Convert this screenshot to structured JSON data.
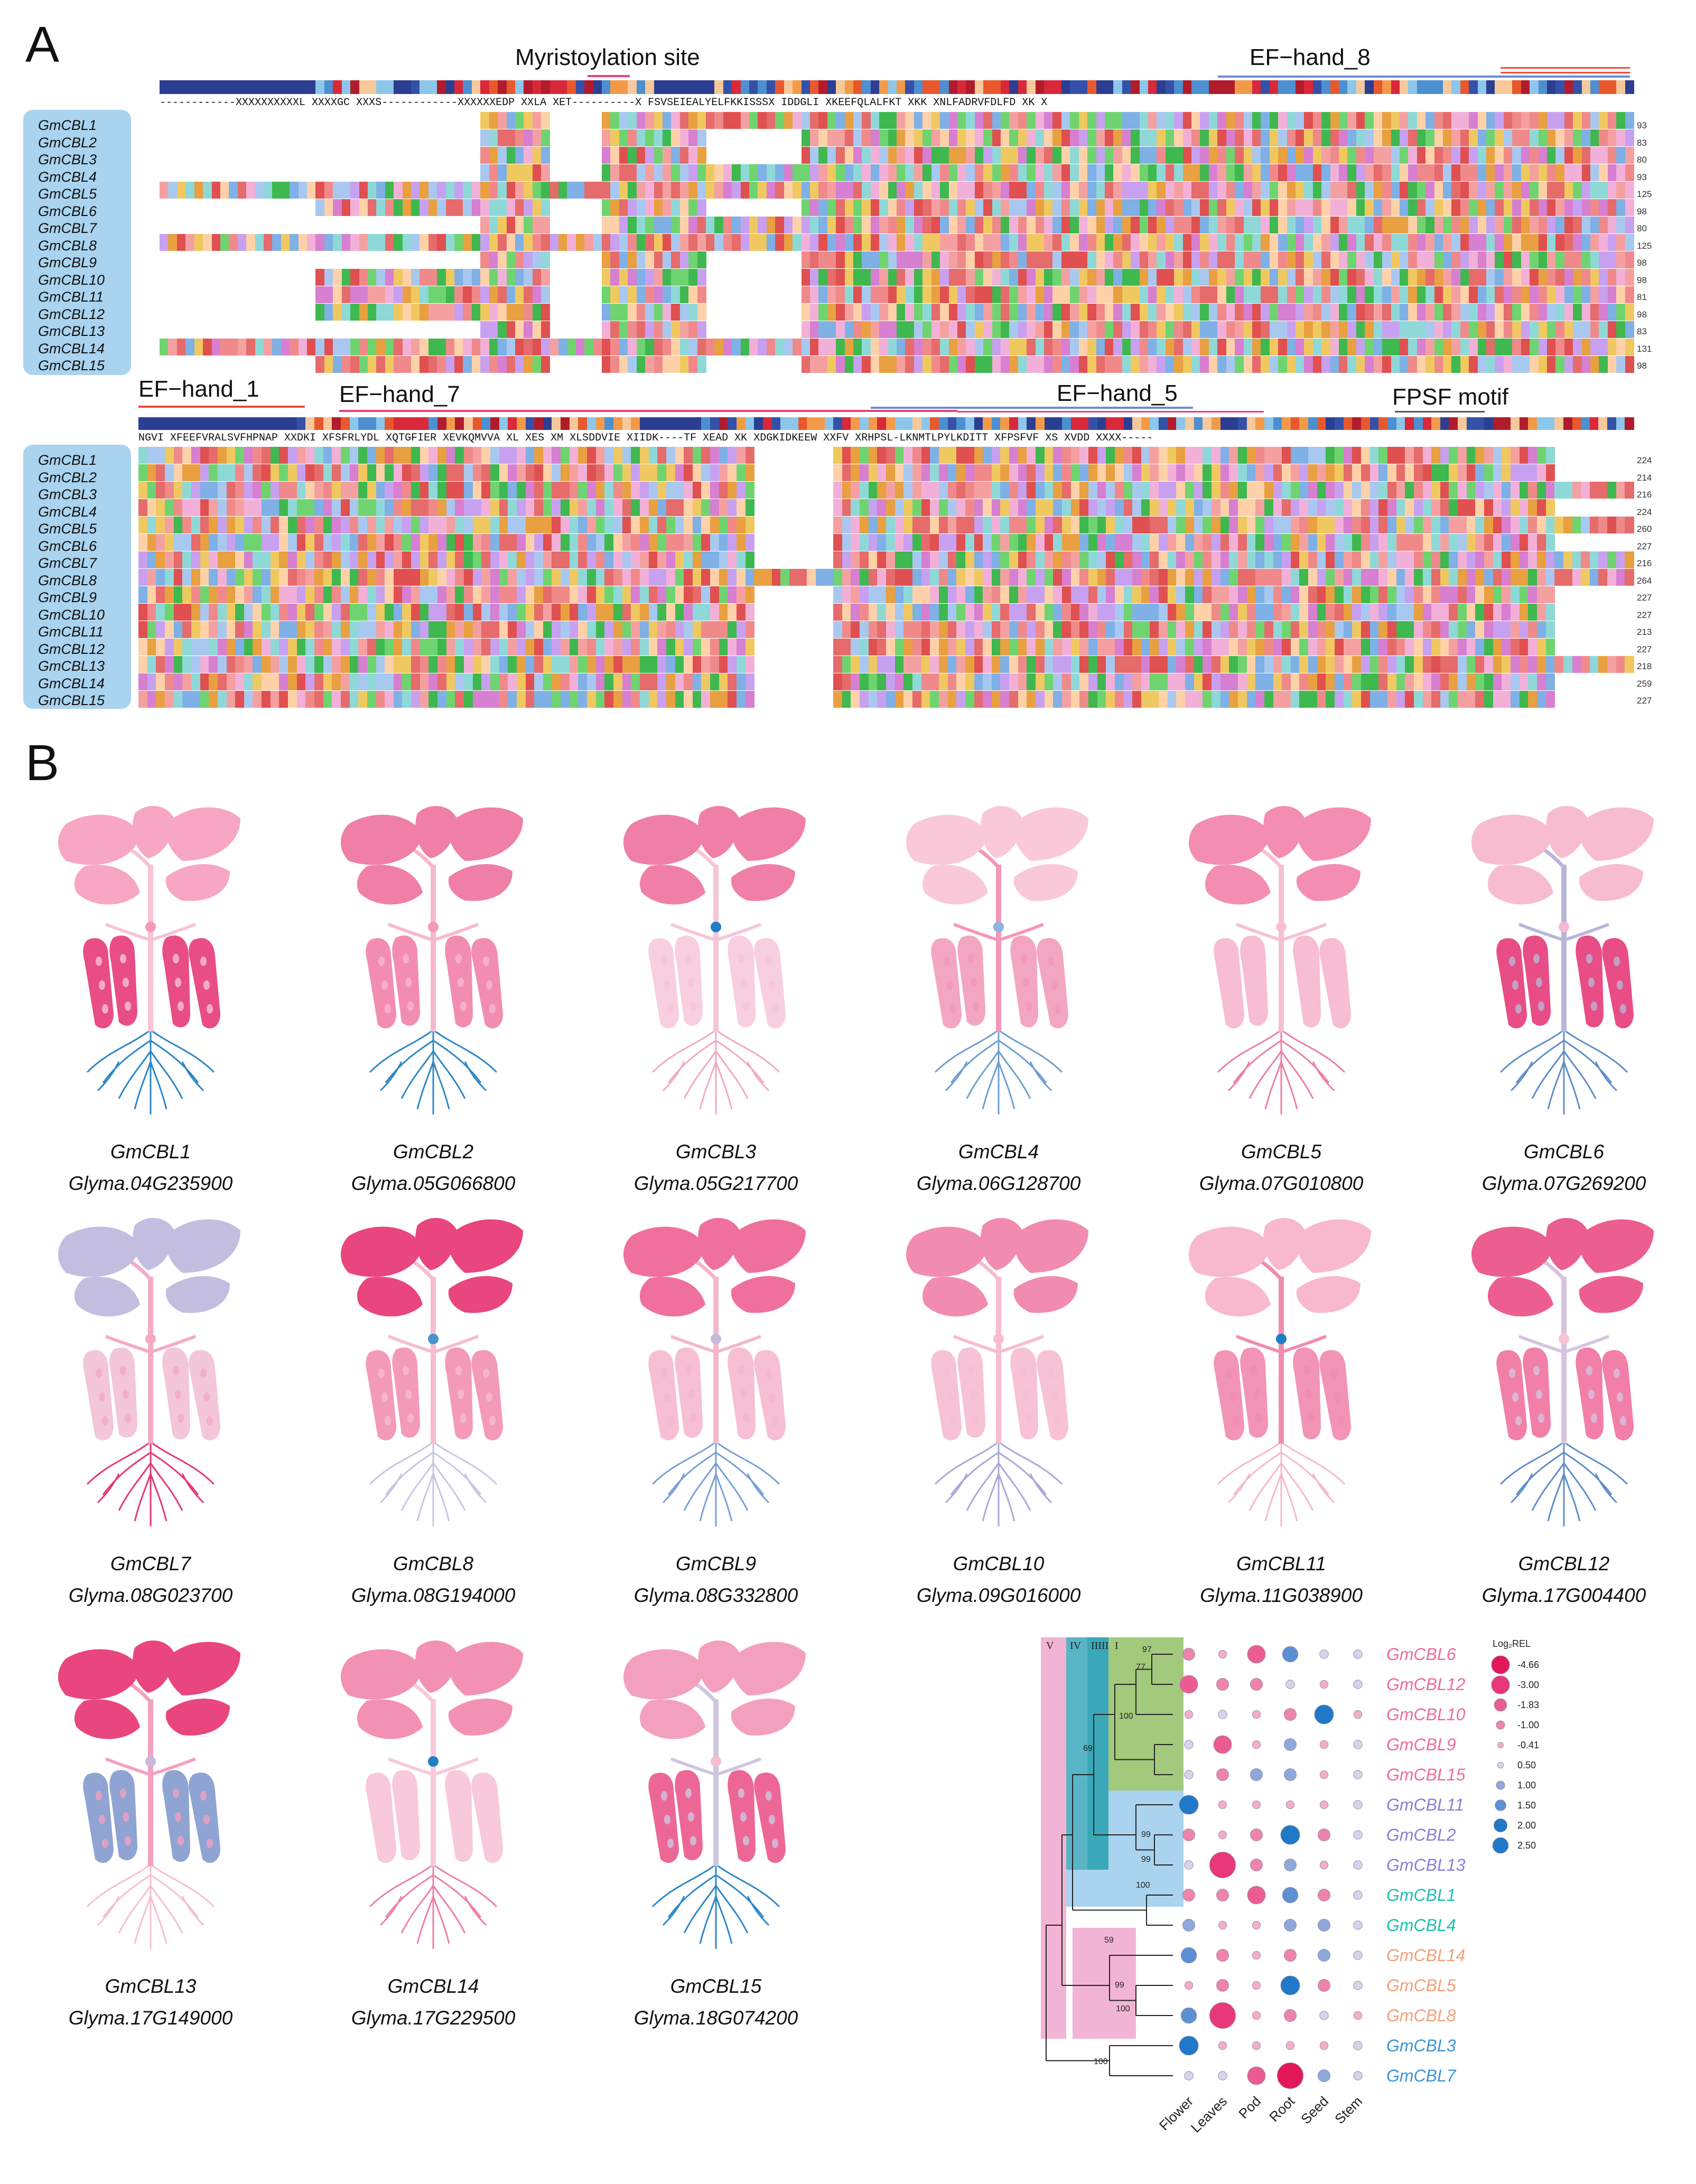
{
  "panel_a": {
    "label": "A",
    "features_block1": {
      "myristoylation": "Myristoylation site",
      "ef_hand_8": "EF−hand_8"
    },
    "features_block2": {
      "ef_hand_1": "EF−hand_1",
      "ef_hand_7": "EF−hand_7",
      "ef_hand_5": "EF−hand_5",
      "fpsf_motif": "FPSF motif"
    },
    "consensus_block1": "------------XXXXXXXXXXL XXXXGC XXXS------------XXXXXXEDP XXLA XET----------X FSVSEIEALYELFKKISSSX IDDGLI XKEEFQLALFKT XKK XNLFADRVFDLFD XK X",
    "consensus_block2": "NGVI XFEEFVRALSVFHPNAP XXDKI XFSFRLYDL XQTGFIER XEVKQMVVA XL XES XM XLSDDVIE XIIDK----TF XEAD XK XDGKIDKEEW XXFV XRHPSL-LKNMTLPYLKDITT XFPSFVF XS XVDD XXXX-----",
    "sequences": [
      {
        "name": "GmCBL1",
        "len1": "93",
        "len2": "224"
      },
      {
        "name": "GmCBL2",
        "len1": "83",
        "len2": "214"
      },
      {
        "name": "GmCBL3",
        "len1": "80",
        "len2": "216"
      },
      {
        "name": "GmCBL4",
        "len1": "93",
        "len2": "224"
      },
      {
        "name": "GmCBL5",
        "len1": "125",
        "len2": "260"
      },
      {
        "name": "GmCBL6",
        "len1": "98",
        "len2": "227"
      },
      {
        "name": "GmCBL7",
        "len1": "80",
        "len2": "216"
      },
      {
        "name": "GmCBL8",
        "len1": "125",
        "len2": "264"
      },
      {
        "name": "GmCBL9",
        "len1": "98",
        "len2": "227"
      },
      {
        "name": "GmCBL10",
        "len1": "98",
        "len2": "227"
      },
      {
        "name": "GmCBL11",
        "len1": "81",
        "len2": "213"
      },
      {
        "name": "GmCBL12",
        "len1": "98",
        "len2": "227"
      },
      {
        "name": "GmCBL13",
        "len1": "83",
        "len2": "218"
      },
      {
        "name": "GmCBL14",
        "len1": "131",
        "len2": "259"
      },
      {
        "name": "GmCBL15",
        "len1": "98",
        "len2": "227"
      }
    ]
  },
  "panel_b": {
    "label": "B",
    "plants": [
      {
        "name": "GmCBL1",
        "id": "Glyma.04G235900",
        "leaf": "#f7a6c3",
        "stem": "#f8c3d6",
        "pod": "#e84d86",
        "root": "#2d86c4",
        "node": "#f49ab8"
      },
      {
        "name": "GmCBL2",
        "id": "Glyma.05G066800",
        "leaf": "#ef7fa6",
        "stem": "#f7b8cf",
        "pod": "#f28db1",
        "root": "#2f88c6",
        "node": "#f49ab8"
      },
      {
        "name": "GmCBL3",
        "id": "Glyma.05G217700",
        "leaf": "#f07fa7",
        "stem": "#f6c6d8",
        "pod": "#f8cfe0",
        "root": "#f3a9c4",
        "node": "#1f7fc4"
      },
      {
        "name": "GmCBL4",
        "id": "Glyma.06G128700",
        "leaf": "#f9c9da",
        "stem": "#f398b9",
        "pod": "#f3a6c2",
        "root": "#6e9fd0",
        "node": "#88b6e0"
      },
      {
        "name": "GmCBL5",
        "id": "Glyma.07G010800",
        "leaf": "#f48db2",
        "stem": "#f6c0d4",
        "pod": "#f7bdd2",
        "root": "#ed7ea6",
        "node": "#f8c0d4"
      },
      {
        "name": "GmCBL6",
        "id": "Glyma.07G269200",
        "leaf": "#f7bcd0",
        "stem": "#b9b5da",
        "pod": "#e94d86",
        "root": "#5f8ec8",
        "node": "#f6b9cf"
      },
      {
        "name": "GmCBL7",
        "id": "Glyma.08G023700",
        "leaf": "#c3bde0",
        "stem": "#f4aac5",
        "pod": "#f3c6da",
        "root": "#e6386f",
        "node": "#f5a8c4"
      },
      {
        "name": "GmCBL8",
        "id": "Glyma.08G194000",
        "leaf": "#e9457f",
        "stem": "#f7bcd0",
        "pod": "#f49ab9",
        "root": "#c9c5e3",
        "node": "#4b93cf"
      },
      {
        "name": "GmCBL9",
        "id": "Glyma.08G332800",
        "leaf": "#f0709d",
        "stem": "#f5b6cd",
        "pod": "#f6bfd3",
        "root": "#7aa0d4",
        "node": "#c8b9dc"
      },
      {
        "name": "GmCBL10",
        "id": "Glyma.09G016000",
        "leaf": "#f28bb0",
        "stem": "#f7bcd0",
        "pod": "#f7c2d6",
        "root": "#a7a9d7",
        "node": "#f7bcd0"
      },
      {
        "name": "GmCBL11",
        "id": "Glyma.11G038900",
        "leaf": "#f8b9cf",
        "stem": "#f08cb0",
        "pod": "#f294b6",
        "root": "#f6b8ce",
        "node": "#1f7fc4"
      },
      {
        "name": "GmCBL12",
        "id": "Glyma.17G004400",
        "leaf": "#ec5e90",
        "stem": "#d7c3df",
        "pod": "#f27fa7",
        "root": "#5f8ec8",
        "node": "#f8c3d6"
      },
      {
        "name": "GmCBL13",
        "id": "Glyma.17G149000",
        "leaf": "#e9457f",
        "stem": "#f4a1c0",
        "pod": "#8fa4d2",
        "root": "#f4c0d3",
        "node": "#c8b9dc"
      },
      {
        "name": "GmCBL14",
        "id": "Glyma.17G229500",
        "leaf": "#f291b4",
        "stem": "#f8c9da",
        "pod": "#f8c9da",
        "root": "#ee7fa7",
        "node": "#1f7fc4"
      },
      {
        "name": "GmCBL15",
        "id": "Glyma.18G074200",
        "leaf": "#f3a0bf",
        "stem": "#cfc6e2",
        "pod": "#ed6796",
        "root": "#2f88c6",
        "node": "#f7bcd0"
      }
    ],
    "heatmap": {
      "groups": [
        "V",
        "IV",
        "III",
        "II",
        "I"
      ],
      "bootstrap": [
        "97",
        "77",
        "100",
        "69",
        "99",
        "99",
        "100",
        "59",
        "99",
        "100",
        "100"
      ],
      "columns": [
        "Flower",
        "Leaves",
        "Pod",
        "Root",
        "Seed",
        "Stem"
      ],
      "rows": [
        {
          "name": "GmCBL6",
          "color": "#f06c94",
          "vals": [
            -1.0,
            -0.41,
            -1.83,
            1.5,
            0.5,
            0.5
          ]
        },
        {
          "name": "GmCBL12",
          "color": "#f06c94",
          "vals": [
            -1.83,
            -1.0,
            -1.0,
            0.5,
            -0.41,
            0.5
          ]
        },
        {
          "name": "GmCBL10",
          "color": "#f06c94",
          "vals": [
            -0.41,
            0.5,
            -0.41,
            -1.0,
            2.0,
            -0.41
          ]
        },
        {
          "name": "GmCBL9",
          "color": "#f06c94",
          "vals": [
            0.5,
            -1.83,
            -0.41,
            1.0,
            -0.41,
            0.5
          ]
        },
        {
          "name": "GmCBL15",
          "color": "#f06c94",
          "vals": [
            0.5,
            -1.0,
            1.0,
            1.0,
            -0.41,
            0.5
          ]
        },
        {
          "name": "GmCBL11",
          "color": "#8a7fd8",
          "vals": [
            2.0,
            -0.41,
            -0.41,
            -0.41,
            -0.41,
            0.5
          ]
        },
        {
          "name": "GmCBL2",
          "color": "#8a7fd8",
          "vals": [
            -1.0,
            -0.41,
            -1.0,
            2.0,
            -1.0,
            0.5
          ]
        },
        {
          "name": "GmCBL13",
          "color": "#8a7fd8",
          "vals": [
            0.5,
            -3.0,
            -1.0,
            1.0,
            -0.41,
            0.5
          ]
        },
        {
          "name": "GmCBL1",
          "color": "#1fbfb0",
          "vals": [
            -1.0,
            -1.0,
            -1.83,
            1.5,
            -1.0,
            0.5
          ]
        },
        {
          "name": "GmCBL4",
          "color": "#1fbfb0",
          "vals": [
            1.0,
            -0.41,
            -0.41,
            1.0,
            1.0,
            0.5
          ]
        },
        {
          "name": "GmCBL14",
          "color": "#f3a07a",
          "vals": [
            1.5,
            -1.0,
            -0.41,
            -1.0,
            1.0,
            0.5
          ]
        },
        {
          "name": "GmCBL5",
          "color": "#f3a07a",
          "vals": [
            -0.41,
            -1.0,
            -0.41,
            2.0,
            -1.0,
            0.5
          ]
        },
        {
          "name": "GmCBL8",
          "color": "#f3a07a",
          "vals": [
            1.5,
            -3.0,
            -0.41,
            -1.0,
            0.5,
            -0.41
          ]
        },
        {
          "name": "GmCBL3",
          "color": "#3b96d8",
          "vals": [
            2.0,
            -0.41,
            -0.41,
            -0.41,
            -0.41,
            0.5
          ]
        },
        {
          "name": "GmCBL7",
          "color": "#3b96d8",
          "vals": [
            0.5,
            0.5,
            -1.83,
            -4.66,
            1.0,
            0.5
          ]
        }
      ],
      "legend_title": "Log₂REL",
      "legend": [
        "-4.66",
        "-3.00",
        "-1.83",
        "-1.00",
        "-0.41",
        "0.50",
        "1.00",
        "1.50",
        "2.00",
        "2.50"
      ]
    }
  }
}
